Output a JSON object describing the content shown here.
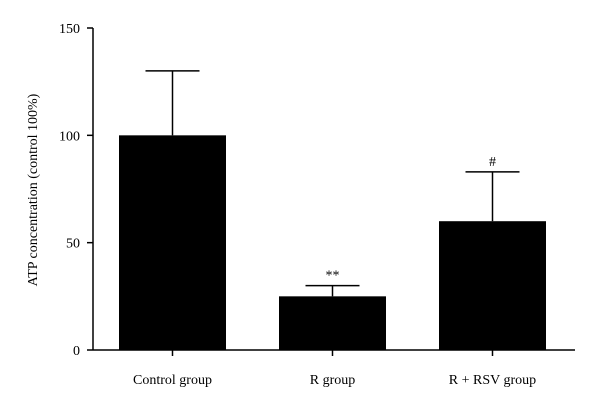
{
  "chart_data": {
    "type": "bar",
    "ylabel": "ATP concentration (control 100%)",
    "xlabel": "",
    "ylim": [
      0,
      150
    ],
    "yticks": [
      0,
      50,
      100,
      150
    ],
    "categories": [
      "Control group",
      "R group",
      "R + RSV group"
    ],
    "values": [
      100,
      25,
      60
    ],
    "error_upper": [
      30,
      5,
      23
    ],
    "annotations": [
      "",
      "**",
      "#"
    ],
    "bar_color": "#000000",
    "grid": false,
    "legend": "none"
  }
}
